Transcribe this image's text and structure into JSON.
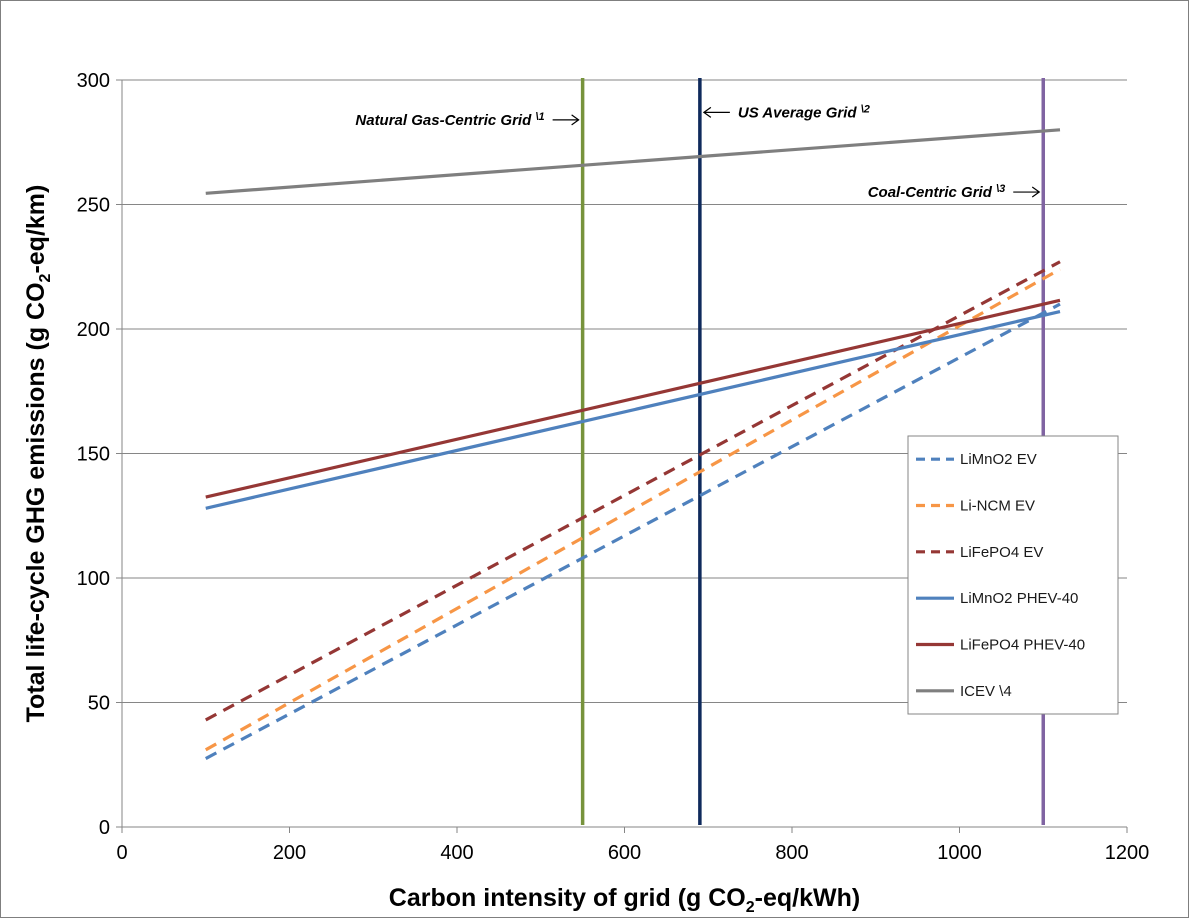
{
  "chart_data": {
    "type": "line",
    "title": "",
    "xlabel": "Carbon intensity of grid (g CO2-eq/kWh)",
    "xlabel_parts": [
      "Carbon intensity of grid (g CO",
      "2",
      "-eq/kWh)"
    ],
    "ylabel": "Total life-cycle GHG emissions (g CO2-eq/km)",
    "ylabel_parts": [
      "Total life-cycle GHG emissions (g CO",
      "2",
      "-eq/km)"
    ],
    "xlim": [
      0,
      1200
    ],
    "ylim": [
      0,
      300
    ],
    "xticks": [
      0,
      200,
      400,
      600,
      800,
      1000,
      1200
    ],
    "yticks": [
      0,
      50,
      100,
      150,
      200,
      250,
      300
    ],
    "grid": "horizontal",
    "legend_position": "right",
    "series": [
      {
        "name": "LiMnO2 EV",
        "color": "#4f81bd",
        "dash": true,
        "x": [
          100,
          1120
        ],
        "y": [
          27.5,
          210
        ]
      },
      {
        "name": "Li-NCM EV",
        "color": "#f79646",
        "dash": true,
        "x": [
          100,
          1120
        ],
        "y": [
          31,
          224
        ]
      },
      {
        "name": "LiFePO4 EV",
        "color": "#953735",
        "dash": true,
        "x": [
          100,
          1120
        ],
        "y": [
          43,
          227
        ]
      },
      {
        "name": "LiMnO2 PHEV-40",
        "color": "#4f81bd",
        "dash": false,
        "x": [
          100,
          1120
        ],
        "y": [
          128,
          207
        ]
      },
      {
        "name": "LiFePO4 PHEV-40",
        "color": "#953735",
        "dash": false,
        "x": [
          100,
          1120
        ],
        "y": [
          132.5,
          211.5
        ]
      },
      {
        "name": "ICEV \\4",
        "color": "#7f7f7f",
        "dash": false,
        "x": [
          100,
          1120
        ],
        "y": [
          254.5,
          280
        ]
      }
    ],
    "vertical_lines": [
      {
        "x": 550,
        "color": "#77933c",
        "label": "Natural Gas-Centric Grid",
        "note": "\\1",
        "side": "left",
        "label_y": 284
      },
      {
        "x": 690,
        "color": "#0f2a5c",
        "label": "US Average Grid",
        "note": "\\2",
        "side": "right",
        "label_y": 287
      },
      {
        "x": 1100,
        "color": "#8064a2",
        "label": "Coal-Centric Grid",
        "note": "\\3",
        "side": "left",
        "label_y": 255
      }
    ]
  }
}
